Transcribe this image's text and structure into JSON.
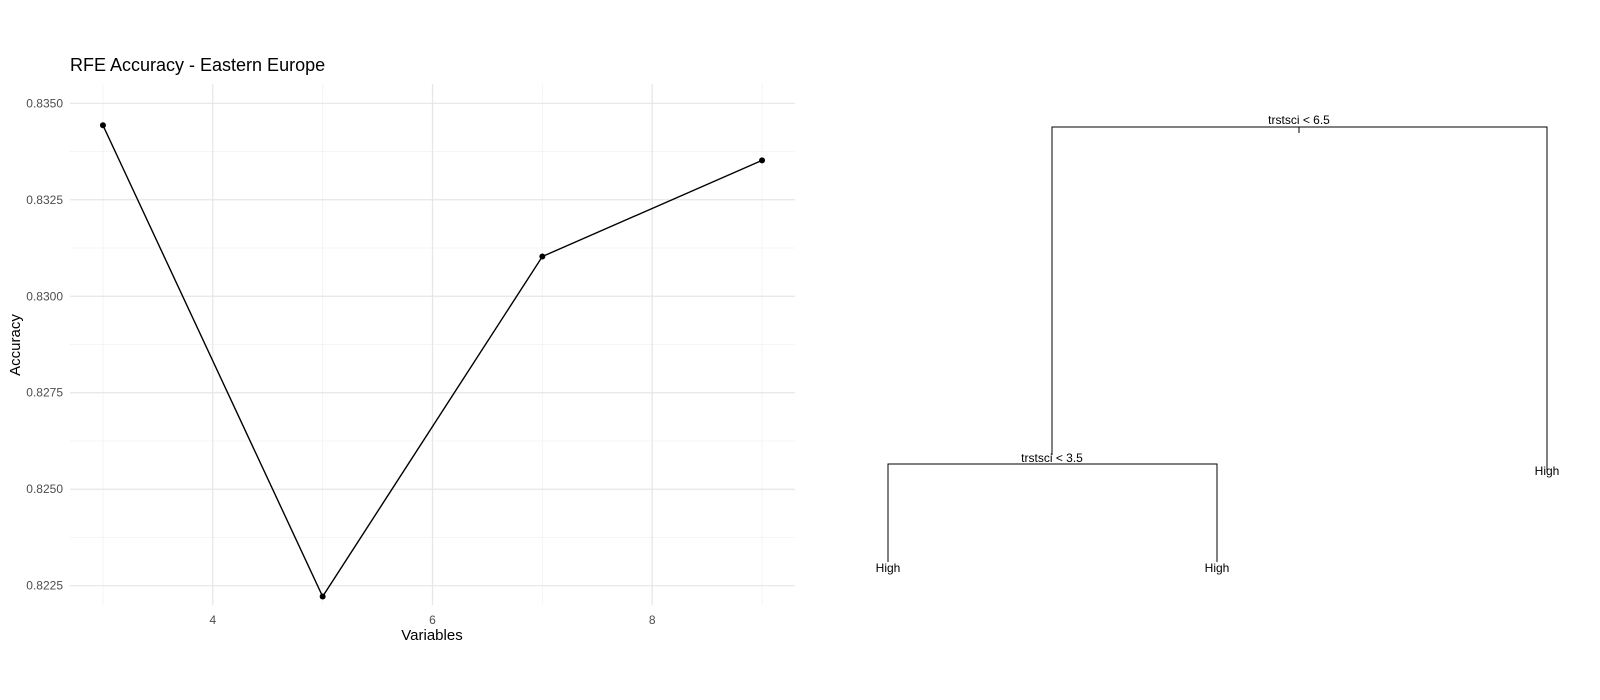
{
  "chart_data": {
    "type": "line",
    "title": "RFE Accuracy - Eastern Europe",
    "xlabel": "Variables",
    "ylabel": "Accuracy",
    "x": [
      3,
      5,
      7,
      9
    ],
    "values": [
      0.83443,
      0.82222,
      0.83103,
      0.83352
    ],
    "xlim": [
      2.7,
      9.3
    ],
    "ylim": [
      0.822,
      0.8355
    ],
    "x_ticks": [
      4,
      6,
      8
    ],
    "x_tick_labels": [
      "4",
      "6",
      "8"
    ],
    "y_ticks": [
      0.8225,
      0.825,
      0.8275,
      0.83,
      0.8325,
      0.835
    ],
    "y_tick_labels": [
      "0.8225",
      "0.8250",
      "0.8275",
      "0.8300",
      "0.8325",
      "0.8350"
    ],
    "grid": true,
    "legend": "none",
    "color": "#000000"
  },
  "tree": {
    "root_split": "trstsci < 6.5",
    "left_split": "trstsci < 3.5",
    "leaf_left_left": "High",
    "leaf_left_right": "High",
    "leaf_right": "High"
  }
}
